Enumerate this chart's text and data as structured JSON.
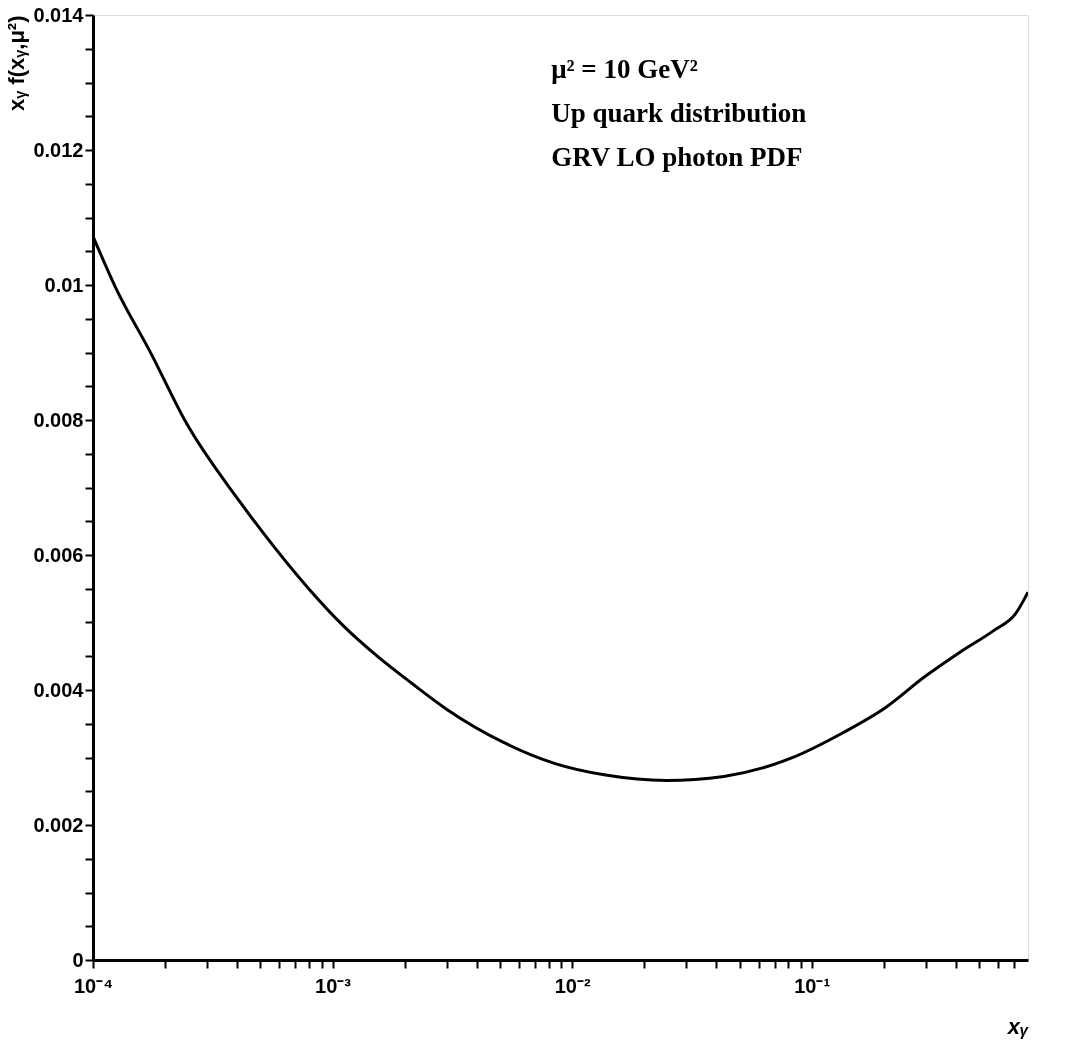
{
  "chart_data": {
    "type": "line",
    "ylabel": "xᵧ f(xᵧ,μ²)",
    "xlabel": "xᵧ",
    "annotations": [
      "μ² = 10 GeV²",
      "Up quark distribution",
      "GRV LO photon PDF"
    ],
    "log": "x",
    "grid": false,
    "marker": "none",
    "line_style": "solid",
    "xlim": [
      0.0001,
      0.8
    ],
    "ylim": [
      0,
      0.014
    ],
    "xticks": [
      {
        "value": 0.0001,
        "label": "10⁻⁴"
      },
      {
        "value": 0.0002,
        "label": null
      },
      {
        "value": 0.0003,
        "label": null
      },
      {
        "value": 0.0004,
        "label": null
      },
      {
        "value": 0.0005,
        "label": null
      },
      {
        "value": 0.0006,
        "label": null
      },
      {
        "value": 0.0007,
        "label": null
      },
      {
        "value": 0.0008,
        "label": null
      },
      {
        "value": 0.0009,
        "label": null
      },
      {
        "value": 0.001,
        "label": "10⁻³"
      },
      {
        "value": 0.002,
        "label": null
      },
      {
        "value": 0.003,
        "label": null
      },
      {
        "value": 0.004,
        "label": null
      },
      {
        "value": 0.005,
        "label": null
      },
      {
        "value": 0.006,
        "label": null
      },
      {
        "value": 0.007,
        "label": null
      },
      {
        "value": 0.008,
        "label": null
      },
      {
        "value": 0.009,
        "label": null
      },
      {
        "value": 0.01,
        "label": "10⁻²"
      },
      {
        "value": 0.02,
        "label": null
      },
      {
        "value": 0.03,
        "label": null
      },
      {
        "value": 0.04,
        "label": null
      },
      {
        "value": 0.05,
        "label": null
      },
      {
        "value": 0.06,
        "label": null
      },
      {
        "value": 0.07,
        "label": null
      },
      {
        "value": 0.08,
        "label": null
      },
      {
        "value": 0.09,
        "label": null
      },
      {
        "value": 0.1,
        "label": "10⁻¹"
      },
      {
        "value": 0.2,
        "label": null
      },
      {
        "value": 0.3,
        "label": null
      },
      {
        "value": 0.4,
        "label": null
      },
      {
        "value": 0.5,
        "label": null
      },
      {
        "value": 0.6,
        "label": null
      },
      {
        "value": 0.7,
        "label": null
      }
    ],
    "yticks": [
      0,
      {
        "value": 0.0005,
        "label": null
      },
      {
        "value": 0.001,
        "label": null
      },
      {
        "value": 0.0015,
        "label": null
      },
      0.002,
      {
        "value": 0.0025,
        "label": null
      },
      {
        "value": 0.003,
        "label": null
      },
      {
        "value": 0.0035,
        "label": null
      },
      0.004,
      {
        "value": 0.0045,
        "label": null
      },
      {
        "value": 0.005,
        "label": null
      },
      {
        "value": 0.0055,
        "label": null
      },
      0.006,
      {
        "value": 0.0065,
        "label": null
      },
      {
        "value": 0.007,
        "label": null
      },
      {
        "value": 0.0075,
        "label": null
      },
      0.008,
      {
        "value": 0.0085,
        "label": null
      },
      {
        "value": 0.009,
        "label": null
      },
      {
        "value": 0.0095,
        "label": null
      },
      0.01,
      {
        "value": 0.0105,
        "label": null
      },
      {
        "value": 0.011,
        "label": null
      },
      {
        "value": 0.0115,
        "label": null
      },
      0.012,
      {
        "value": 0.0125,
        "label": null
      },
      {
        "value": 0.013,
        "label": null
      },
      {
        "value": 0.0135,
        "label": null
      },
      0.014
    ],
    "series": [
      {
        "color": "#000000",
        "x": [
          0.0001,
          0.000124,
          0.000175,
          0.000243,
          0.00041,
          0.000505,
          0.0008,
          0.00111,
          0.00155,
          0.00214,
          0.00298,
          0.0052,
          0.0085,
          0.0138,
          0.0247,
          0.043,
          0.082,
          0.134,
          0.198,
          0.3,
          0.416,
          0.575,
          0.71,
          0.8
        ],
        "values": [
          0.01072,
          0.00997,
          0.00898,
          0.00798,
          0.00679,
          0.00636,
          0.00549,
          0.00495,
          0.00449,
          0.0041,
          0.00372,
          0.00322,
          0.00291,
          0.00274,
          0.00266,
          0.00272,
          0.00299,
          0.00336,
          0.00371,
          0.00421,
          0.00456,
          0.00488,
          0.00513,
          0.00545
        ]
      }
    ]
  }
}
